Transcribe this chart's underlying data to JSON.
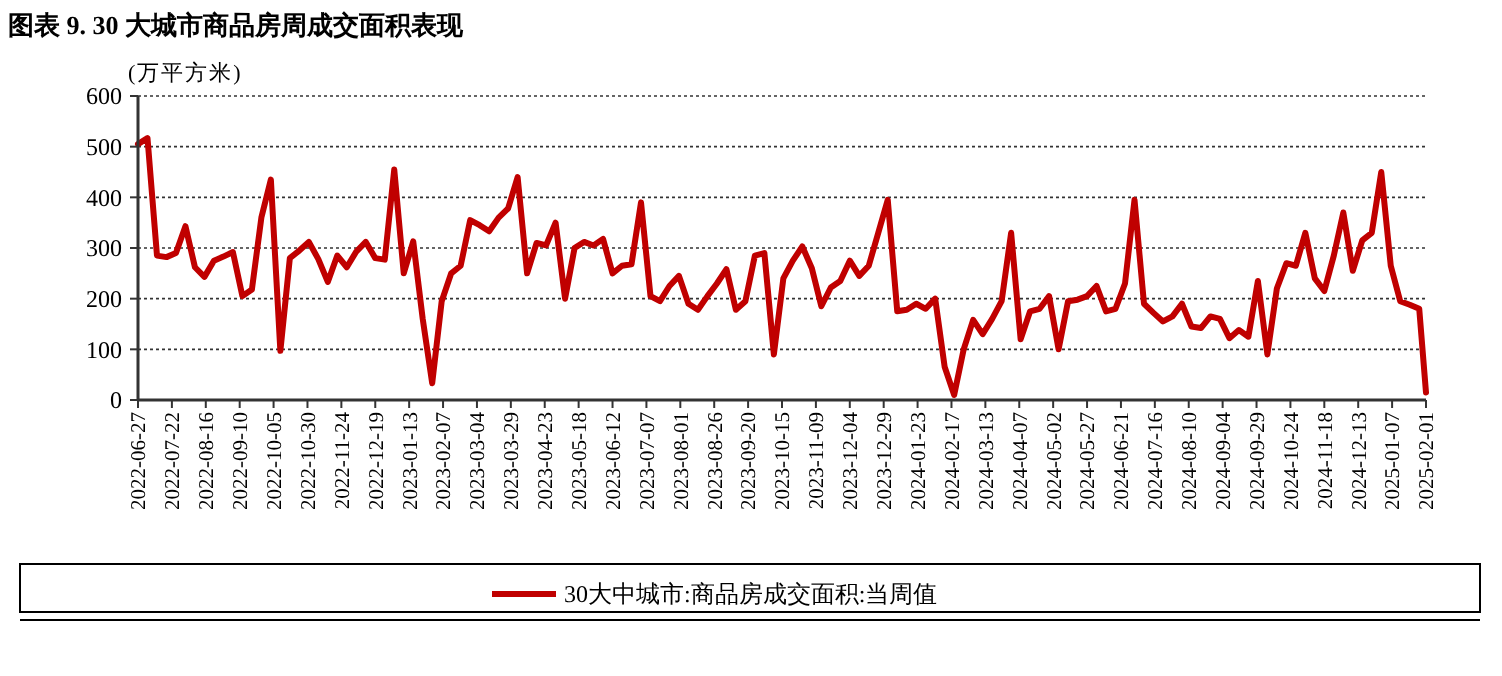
{
  "chart_data": {
    "type": "line",
    "title": "图表 9. 30 大城市商品房周成交面积表现",
    "ylabel": "(万平方米)",
    "x": [
      "2022-06-27",
      "2022-07-04",
      "2022-07-11",
      "2022-07-18",
      "2022-07-25",
      "2022-08-01",
      "2022-08-08",
      "2022-08-15",
      "2022-08-22",
      "2022-08-29",
      "2022-09-05",
      "2022-09-12",
      "2022-09-19",
      "2022-09-26",
      "2022-10-03",
      "2022-10-10",
      "2022-10-17",
      "2022-10-24",
      "2022-10-31",
      "2022-11-07",
      "2022-11-14",
      "2022-11-21",
      "2022-11-28",
      "2022-12-05",
      "2022-12-12",
      "2022-12-19",
      "2022-12-26",
      "2023-01-02",
      "2023-01-09",
      "2023-01-16",
      "2023-01-23",
      "2023-01-30",
      "2023-02-06",
      "2023-02-13",
      "2023-02-20",
      "2023-02-27",
      "2023-03-06",
      "2023-03-13",
      "2023-03-20",
      "2023-03-27",
      "2023-04-03",
      "2023-04-10",
      "2023-04-17",
      "2023-04-24",
      "2023-05-01",
      "2023-05-08",
      "2023-05-15",
      "2023-05-22",
      "2023-05-29",
      "2023-06-05",
      "2023-06-12",
      "2023-06-19",
      "2023-06-26",
      "2023-07-03",
      "2023-07-10",
      "2023-07-17",
      "2023-07-24",
      "2023-07-31",
      "2023-08-07",
      "2023-08-14",
      "2023-08-21",
      "2023-08-28",
      "2023-09-04",
      "2023-09-11",
      "2023-09-18",
      "2023-09-25",
      "2023-10-02",
      "2023-10-09",
      "2023-10-16",
      "2023-10-23",
      "2023-10-30",
      "2023-11-06",
      "2023-11-13",
      "2023-11-20",
      "2023-11-27",
      "2023-12-04",
      "2023-12-11",
      "2023-12-18",
      "2023-12-25",
      "2024-01-01",
      "2024-01-08",
      "2024-01-15",
      "2024-01-22",
      "2024-01-29",
      "2024-02-05",
      "2024-02-12",
      "2024-02-19",
      "2024-02-26",
      "2024-03-04",
      "2024-03-11",
      "2024-03-18",
      "2024-03-25",
      "2024-04-01",
      "2024-04-08",
      "2024-04-15",
      "2024-04-22",
      "2024-04-29",
      "2024-05-06",
      "2024-05-13",
      "2024-05-20",
      "2024-05-27",
      "2024-06-03",
      "2024-06-10",
      "2024-06-17",
      "2024-06-24",
      "2024-07-01",
      "2024-07-08",
      "2024-07-15",
      "2024-07-22",
      "2024-07-29",
      "2024-08-05",
      "2024-08-12",
      "2024-08-19",
      "2024-08-26",
      "2024-09-02",
      "2024-09-09",
      "2024-09-16",
      "2024-09-23",
      "2024-09-30",
      "2024-10-07",
      "2024-10-14",
      "2024-10-21",
      "2024-10-28",
      "2024-11-04",
      "2024-11-11",
      "2024-11-18",
      "2024-11-25",
      "2024-12-02",
      "2024-12-09",
      "2024-12-16",
      "2024-12-23",
      "2024-12-30",
      "2025-01-06",
      "2025-01-13",
      "2025-01-20",
      "2025-01-27",
      "2025-02-01"
    ],
    "series": [
      {
        "name": "30大中城市:商品房成交面积:当周值",
        "color": "#c00000",
        "values": [
          505,
          517,
          285,
          282,
          290,
          343,
          262,
          243,
          275,
          283,
          292,
          205,
          218,
          360,
          435,
          97,
          280,
          295,
          312,
          278,
          233,
          285,
          262,
          293,
          312,
          280,
          277,
          455,
          250,
          313,
          160,
          33,
          195,
          250,
          265,
          355,
          345,
          333,
          360,
          378,
          440,
          250,
          310,
          305,
          350,
          200,
          300,
          312,
          305,
          318,
          250,
          265,
          268,
          390,
          205,
          195,
          225,
          245,
          190,
          178,
          205,
          230,
          258,
          178,
          195,
          285,
          290,
          90,
          240,
          275,
          303,
          260,
          185,
          222,
          235,
          275,
          245,
          265,
          330,
          395,
          175,
          178,
          190,
          180,
          200,
          65,
          10,
          100,
          158,
          130,
          160,
          195,
          330,
          120,
          175,
          180,
          205,
          100,
          195,
          198,
          205,
          225,
          175,
          180,
          230,
          395,
          190,
          172,
          155,
          165,
          190,
          145,
          142,
          165,
          160,
          122,
          138,
          125,
          235,
          90,
          220,
          270,
          265,
          330,
          240,
          215,
          285,
          370,
          255,
          315,
          330,
          450,
          265,
          195,
          188,
          180,
          15
        ]
      }
    ],
    "ylim": [
      0,
      600
    ],
    "yticks": [
      0,
      100,
      200,
      300,
      400,
      500,
      600
    ],
    "xlim": [
      "2022-06-27",
      "2025-02-01"
    ],
    "xticks": [
      "2022-06-27",
      "2022-07-22",
      "2022-08-16",
      "2022-09-10",
      "2022-10-05",
      "2022-10-30",
      "2022-11-24",
      "2022-12-19",
      "2023-01-13",
      "2023-02-07",
      "2023-03-04",
      "2023-03-29",
      "2023-04-23",
      "2023-05-18",
      "2023-06-12",
      "2023-07-07",
      "2023-08-01",
      "2023-08-26",
      "2023-09-20",
      "2023-10-15",
      "2023-11-09",
      "2023-12-04",
      "2023-12-29",
      "2024-01-23",
      "2024-02-17",
      "2024-03-13",
      "2024-04-07",
      "2024-05-02",
      "2024-05-27",
      "2024-06-21",
      "2024-07-16",
      "2024-08-10",
      "2024-09-04",
      "2024-09-29",
      "2024-10-24",
      "2024-11-18",
      "2024-12-13",
      "2025-01-07",
      "2025-02-01"
    ],
    "grid": "y",
    "legend": "bottom",
    "line_style": "solid",
    "marker": "none"
  }
}
